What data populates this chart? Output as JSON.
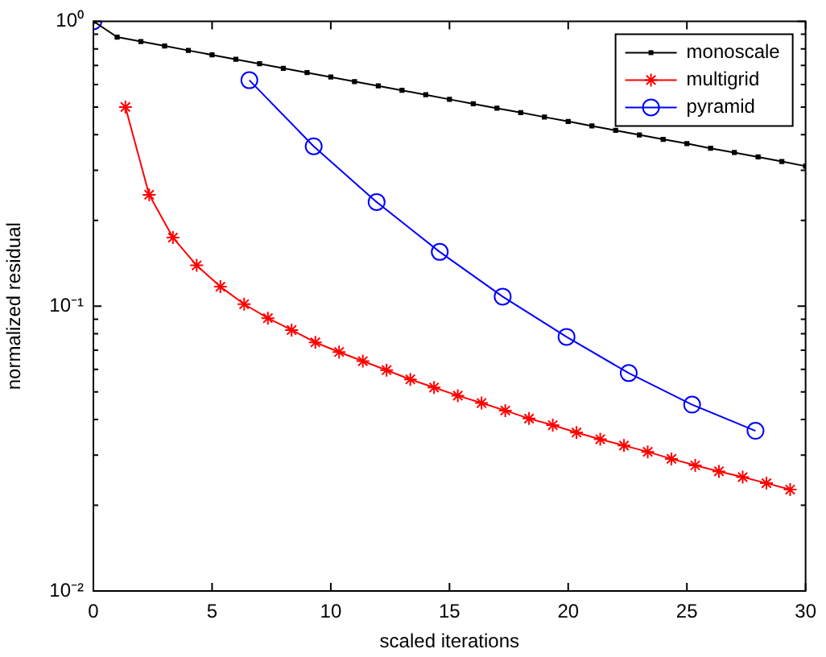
{
  "chart_data": {
    "type": "line",
    "xlabel": "scaled iterations",
    "ylabel": "normalized residual",
    "log": "y",
    "grid": false,
    "legend": "top right",
    "line_style": "solid",
    "xlim": [
      0,
      30
    ],
    "xticks": [
      0,
      5,
      10,
      15,
      20,
      25,
      30
    ],
    "ylim": [
      0.01,
      1
    ],
    "yticks": [
      {
        "value": 0.01,
        "label": "10⁻²"
      },
      {
        "value": 0.02,
        "label": null
      },
      {
        "value": 0.03,
        "label": null
      },
      {
        "value": 0.04,
        "label": null
      },
      {
        "value": 0.05,
        "label": null
      },
      {
        "value": 0.06,
        "label": null
      },
      {
        "value": 0.07,
        "label": null
      },
      {
        "value": 0.08,
        "label": null
      },
      {
        "value": 0.09,
        "label": null
      },
      {
        "value": 0.1,
        "label": "10⁻¹"
      },
      {
        "value": 0.2,
        "label": null
      },
      {
        "value": 0.3,
        "label": null
      },
      {
        "value": 0.4,
        "label": null
      },
      {
        "value": 0.5,
        "label": null
      },
      {
        "value": 0.6,
        "label": null
      },
      {
        "value": 0.7,
        "label": null
      },
      {
        "value": 0.8,
        "label": null
      },
      {
        "value": 0.9,
        "label": null
      },
      {
        "value": 1,
        "label": "10⁰"
      }
    ],
    "series": [
      {
        "name": "monoscale",
        "color": "#000000",
        "marker": "square",
        "x": [
          0,
          1,
          2,
          3,
          4,
          5,
          6,
          7,
          8,
          9,
          10,
          11,
          12,
          13,
          14,
          15,
          16,
          17,
          18,
          19,
          20,
          21,
          22,
          23,
          24,
          25,
          26,
          27,
          28,
          29,
          30
        ],
        "values": [
          1,
          0.88,
          0.849,
          0.819,
          0.79,
          0.762,
          0.735,
          0.709,
          0.684,
          0.66,
          0.637,
          0.614,
          0.593,
          0.572,
          0.552,
          0.532,
          0.513,
          0.495,
          0.478,
          0.461,
          0.445,
          0.429,
          0.414,
          0.399,
          0.385,
          0.372,
          0.358,
          0.346,
          0.334,
          0.322,
          0.31
        ]
      },
      {
        "name": "multigrid",
        "color": "#ff0000",
        "marker": "cross",
        "x": [
          1.35,
          2.35,
          3.35,
          4.35,
          5.35,
          6.35,
          7.35,
          8.35,
          9.35,
          10.35,
          11.35,
          12.35,
          13.35,
          14.35,
          15.35,
          16.35,
          17.35,
          18.35,
          19.35,
          20.35,
          21.35,
          22.35,
          23.35,
          24.35,
          25.35,
          26.35,
          27.35,
          28.35,
          29.35
        ],
        "values": [
          0.5,
          0.246,
          0.174,
          0.139,
          0.117,
          0.1016,
          0.0907,
          0.0824,
          0.0746,
          0.069,
          0.0641,
          0.0596,
          0.0553,
          0.0518,
          0.0485,
          0.0457,
          0.043,
          0.0403,
          0.0382,
          0.036,
          0.0341,
          0.0324,
          0.0308,
          0.0291,
          0.0276,
          0.0263,
          0.0251,
          0.0239,
          0.0227
        ]
      },
      {
        "name": "pyramid",
        "color": "#0000ff",
        "marker": "circle",
        "x": [
          0,
          3.9,
          6.57,
          9.28,
          11.93,
          14.59,
          17.24,
          19.93,
          22.55,
          25.22,
          27.89
        ],
        "values": [
          1,
          null,
          0.621,
          0.364,
          0.232,
          0.155,
          0.108,
          0.078,
          0.0582,
          0.0451,
          0.0365
        ]
      }
    ]
  }
}
